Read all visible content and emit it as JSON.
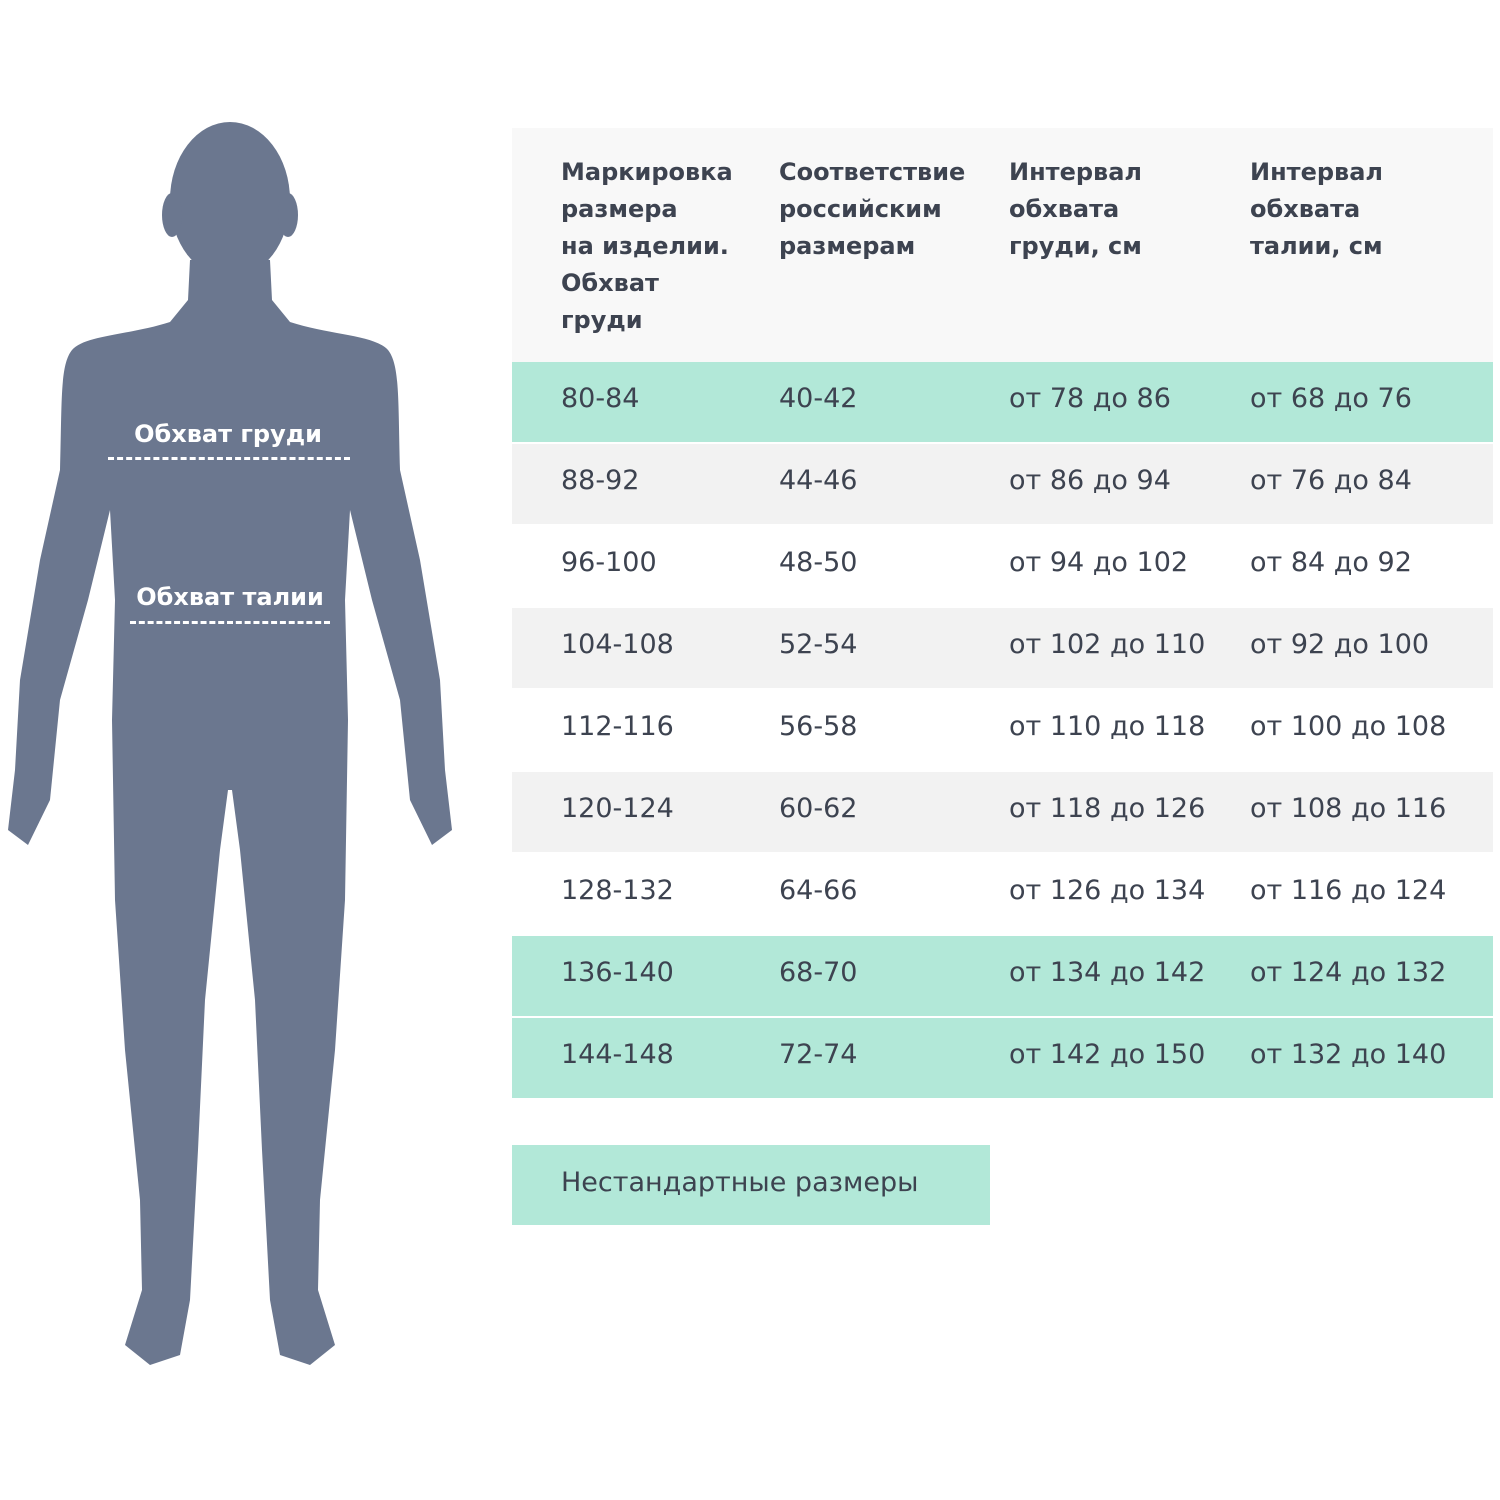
{
  "figure": {
    "chest_label": "Обхват груди",
    "waist_label": "Обхват талии",
    "body_color": "#6b778f"
  },
  "table": {
    "headers": [
      "Маркировка\nразмера\nна изделии.\nОбхват\nгруди",
      "Соответствие\nроссийским\nразмерам",
      "Интервал\nобхвата\nгруди, см",
      "Интервал\nобхвата\nталии, см"
    ],
    "rows": [
      {
        "cells": [
          "80-84",
          "40-42",
          "от 78 до 86",
          "от 68 до 76"
        ],
        "highlight": "green"
      },
      {
        "cells": [
          "88-92",
          "44-46",
          "от 86 до 94",
          "от 76 до 84"
        ],
        "highlight": "gray"
      },
      {
        "cells": [
          "96-100",
          "48-50",
          "от 94 до 102",
          "от 84 до 92"
        ],
        "highlight": "white"
      },
      {
        "cells": [
          "104-108",
          "52-54",
          "от 102 до 110",
          "от 92 до 100"
        ],
        "highlight": "gray"
      },
      {
        "cells": [
          "112-116",
          "56-58",
          "от 110 до 118",
          "от 100 до 108"
        ],
        "highlight": "white"
      },
      {
        "cells": [
          "120-124",
          "60-62",
          "от 118 до 126",
          "от 108 до 116"
        ],
        "highlight": "gray"
      },
      {
        "cells": [
          "128-132",
          "64-66",
          "от 126 до 134",
          "от 116 до 124"
        ],
        "highlight": "white"
      },
      {
        "cells": [
          "136-140",
          "68-70",
          "от 134 до 142",
          "от 124 до 132"
        ],
        "highlight": "green"
      },
      {
        "cells": [
          "144-148",
          "72-74",
          "от 142 до 150",
          "от 132 до 140"
        ],
        "highlight": "green"
      }
    ],
    "colors": {
      "green": "#b2e8d8",
      "gray": "#f2f2f2",
      "header": "#f8f8f8"
    }
  },
  "nonstandard_label": "Нестандартные размеры"
}
